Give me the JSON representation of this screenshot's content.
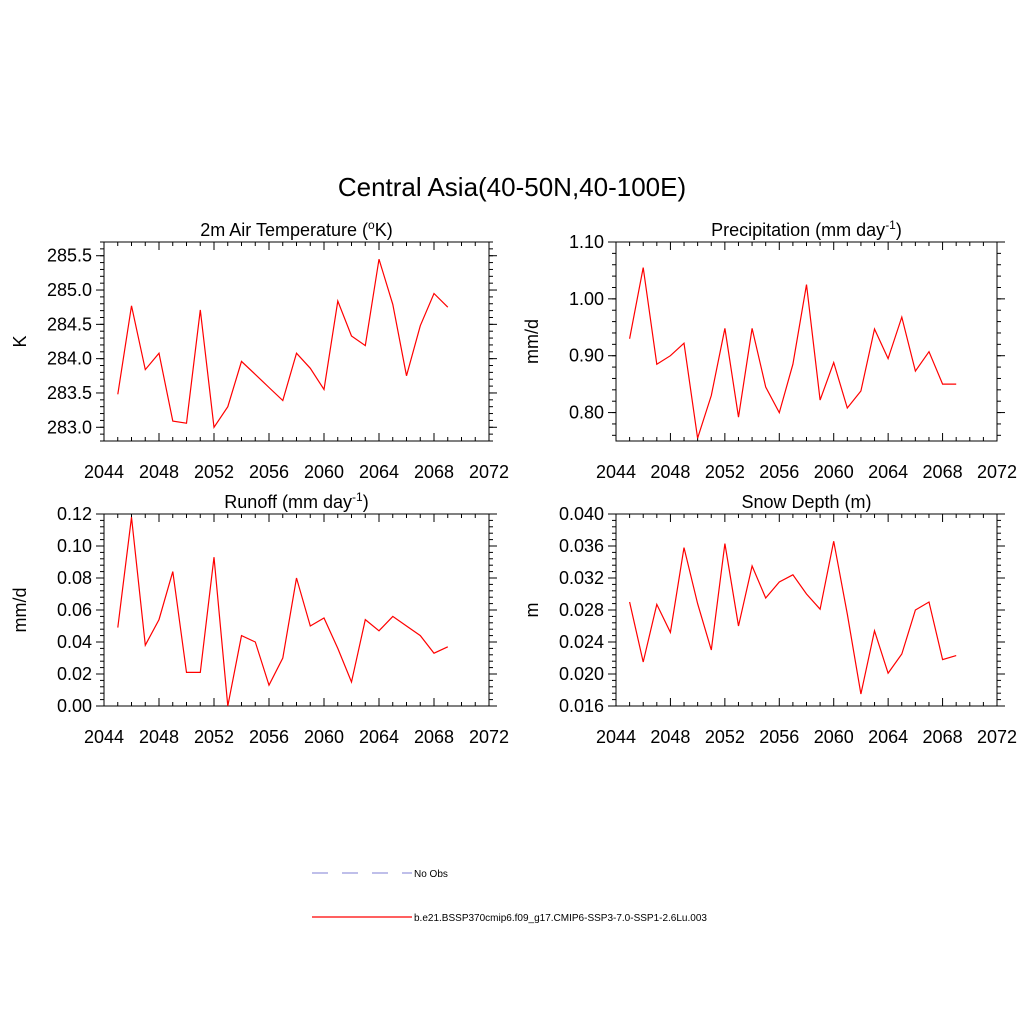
{
  "title": "Central Asia(40-50N,40-100E)",
  "x_tick_labels": [
    "2044",
    "2048",
    "2052",
    "2056",
    "2060",
    "2064",
    "2068",
    "2072"
  ],
  "legend": {
    "entries": [
      {
        "label": "No Obs",
        "color": "#9999dd",
        "style": "dashed"
      },
      {
        "label": "b.e21.BSSP370cmip6.f09_g17.CMIP6-SSP3-7.0-SSP1-2.6Lu.003",
        "color": "#ff0000",
        "style": "solid"
      }
    ]
  },
  "chart_data": [
    {
      "type": "line",
      "title_main": "2m Air Temperature (",
      "title_sup": "o",
      "title_after": "K)",
      "ylabel": "K",
      "xlim": [
        2044,
        2072
      ],
      "ylim": [
        282.8,
        285.7
      ],
      "yticks": [
        "283.0",
        "283.5",
        "284.0",
        "284.5",
        "285.0",
        "285.5"
      ],
      "color": "#ff0000",
      "x": [
        2045,
        2046,
        2047,
        2048,
        2049,
        2050,
        2051,
        2052,
        2053,
        2054,
        2055,
        2056,
        2057,
        2058,
        2059,
        2060,
        2061,
        2062,
        2063,
        2064,
        2065,
        2066,
        2067,
        2068,
        2069
      ],
      "y": [
        283.48,
        284.77,
        283.84,
        284.08,
        283.09,
        283.06,
        284.71,
        283.0,
        283.3,
        283.96,
        283.77,
        283.58,
        283.39,
        284.08,
        283.86,
        283.55,
        284.84,
        284.33,
        284.19,
        285.45,
        284.79,
        283.75,
        284.48,
        284.95,
        284.75
      ]
    },
    {
      "type": "line",
      "title_main": "Precipitation (mm day",
      "title_sup": "-1",
      "title_after": ")",
      "ylabel": "mm/d",
      "xlim": [
        2044,
        2072
      ],
      "ylim": [
        0.75,
        1.1
      ],
      "yticks": [
        "0.80",
        "0.90",
        "1.00",
        "1.10"
      ],
      "color": "#ff0000",
      "x": [
        2045,
        2046,
        2047,
        2048,
        2049,
        2050,
        2051,
        2052,
        2053,
        2054,
        2055,
        2056,
        2057,
        2058,
        2059,
        2060,
        2061,
        2062,
        2063,
        2064,
        2065,
        2066,
        2067,
        2068,
        2069
      ],
      "y": [
        0.93,
        1.055,
        0.885,
        0.9,
        0.922,
        0.755,
        0.83,
        0.948,
        0.792,
        0.948,
        0.845,
        0.8,
        0.885,
        1.025,
        0.822,
        0.888,
        0.808,
        0.838,
        0.947,
        0.895,
        0.968,
        0.873,
        0.907,
        0.85,
        0.85
      ]
    },
    {
      "type": "line",
      "title_main": "Runoff (mm day",
      "title_sup": "-1",
      "title_after": ")",
      "ylabel": "mm/d",
      "xlim": [
        2044,
        2072
      ],
      "ylim": [
        0.0,
        0.12
      ],
      "yticks": [
        "0.00",
        "0.02",
        "0.04",
        "0.06",
        "0.08",
        "0.10",
        "0.12"
      ],
      "color": "#ff0000",
      "x": [
        2045,
        2046,
        2047,
        2048,
        2049,
        2050,
        2051,
        2052,
        2053,
        2054,
        2055,
        2056,
        2057,
        2058,
        2059,
        2060,
        2061,
        2062,
        2063,
        2064,
        2065,
        2066,
        2067,
        2068,
        2069
      ],
      "y": [
        0.049,
        0.118,
        0.038,
        0.054,
        0.084,
        0.021,
        0.021,
        0.093,
        0.0,
        0.044,
        0.04,
        0.013,
        0.03,
        0.08,
        0.05,
        0.055,
        0.036,
        0.015,
        0.054,
        0.047,
        0.056,
        0.05,
        0.044,
        0.033,
        0.037
      ]
    },
    {
      "type": "line",
      "title_main": "Snow Depth (m)",
      "title_sup": "",
      "title_after": "",
      "ylabel": "m",
      "xlim": [
        2044,
        2072
      ],
      "ylim": [
        0.016,
        0.04
      ],
      "yticks": [
        "0.016",
        "0.020",
        "0.024",
        "0.028",
        "0.032",
        "0.036",
        "0.040"
      ],
      "color": "#ff0000",
      "x": [
        2045,
        2046,
        2047,
        2048,
        2049,
        2050,
        2051,
        2052,
        2053,
        2054,
        2055,
        2056,
        2057,
        2058,
        2059,
        2060,
        2061,
        2062,
        2063,
        2064,
        2065,
        2066,
        2067,
        2068,
        2069
      ],
      "y": [
        0.029,
        0.0215,
        0.0287,
        0.0252,
        0.0358,
        0.0288,
        0.023,
        0.0363,
        0.026,
        0.0335,
        0.0295,
        0.0315,
        0.0324,
        0.03,
        0.0281,
        0.0366,
        0.0275,
        0.0175,
        0.0254,
        0.0201,
        0.0225,
        0.028,
        0.029,
        0.0218,
        0.0223
      ]
    }
  ]
}
